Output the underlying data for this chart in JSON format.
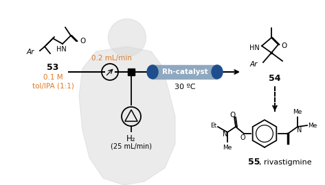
{
  "background_color": "#ffffff",
  "orange_color": "#e07820",
  "dark_blue": "#1f4e8c",
  "black": "#000000",
  "gray_bg": "#d0d0d0",
  "flow_rate_label": "0.2 mL/min",
  "catalyst_label": "Rh-catalyst",
  "temp_label": "30 ºC",
  "h2_label": "H₂",
  "h2_flow_label": "(25 mL/min)",
  "compound_53": "53",
  "compound_53_conc": "0.1 M",
  "compound_53_solvent": "tol/IPA (1:1)",
  "compound_54": "54",
  "compound_55": "55",
  "rivastigmine": ", rivastigmine",
  "fig_width": 4.73,
  "fig_height": 2.7,
  "dpi": 100
}
